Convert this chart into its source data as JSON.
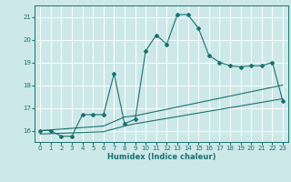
{
  "xlabel": "Humidex (Indice chaleur)",
  "background_color": "#cde8e8",
  "grid_color": "#ffffff",
  "line_color": "#1a7070",
  "xlim": [
    -0.5,
    23.5
  ],
  "ylim": [
    15.5,
    21.5
  ],
  "yticks": [
    16,
    17,
    18,
    19,
    20,
    21
  ],
  "xticks": [
    0,
    1,
    2,
    3,
    4,
    5,
    6,
    7,
    8,
    9,
    10,
    11,
    12,
    13,
    14,
    15,
    16,
    17,
    18,
    19,
    20,
    21,
    22,
    23
  ],
  "curve1_x": [
    0,
    1,
    2,
    3,
    4,
    5,
    6,
    7,
    8,
    9,
    10,
    11,
    12,
    13,
    14,
    15,
    16,
    17,
    18,
    19,
    20,
    21,
    22,
    23
  ],
  "curve1_y": [
    16.0,
    16.0,
    15.75,
    15.75,
    16.7,
    16.7,
    16.7,
    18.5,
    16.3,
    16.5,
    19.5,
    20.2,
    19.8,
    21.1,
    21.1,
    20.5,
    19.3,
    19.0,
    18.85,
    18.8,
    18.85,
    18.85,
    19.0,
    17.3
  ],
  "curve2_x": [
    0,
    6,
    8,
    9,
    23
  ],
  "curve2_y": [
    16.0,
    16.2,
    16.6,
    16.65,
    18.0
  ],
  "curve3_x": [
    0,
    6,
    8,
    9,
    23
  ],
  "curve3_y": [
    15.85,
    15.95,
    16.2,
    16.3,
    17.4
  ],
  "ylabel_fontsize": 5,
  "xlabel_fontsize": 6,
  "tick_fontsize": 5
}
